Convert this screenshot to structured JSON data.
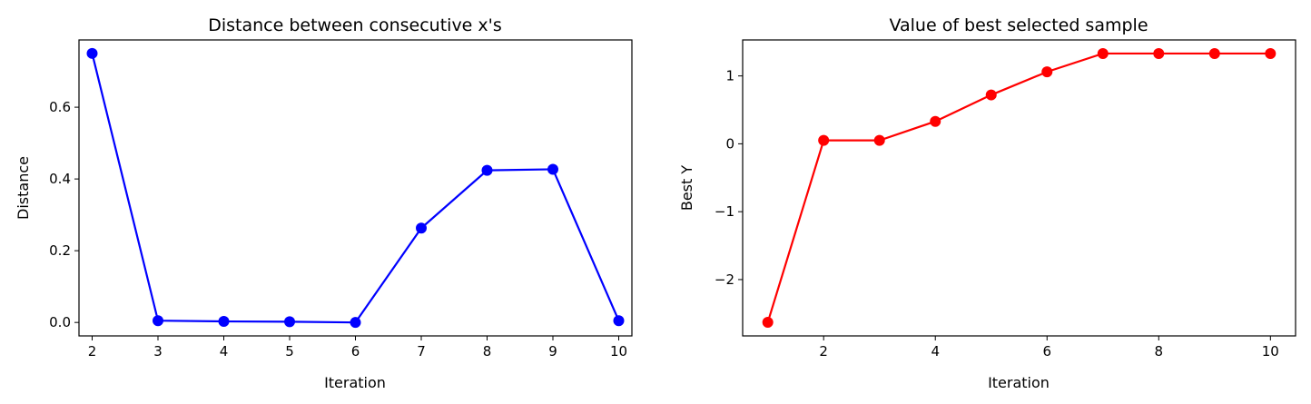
{
  "chart_data": [
    {
      "type": "line",
      "title": "Distance between consecutive x's",
      "xlabel": "Iteration",
      "ylabel": "Distance",
      "x": [
        2,
        3,
        4,
        5,
        6,
        7,
        8,
        9,
        10
      ],
      "series": [
        {
          "values": [
            0.75,
            0.005,
            0.003,
            0.002,
            0.0,
            0.263,
            0.424,
            0.427,
            0.005
          ],
          "color": "#0000ff",
          "marker": "circle"
        }
      ],
      "xlim": [
        1.8,
        10.2
      ],
      "ylim": [
        -0.0375,
        0.7875
      ],
      "xticks": [
        2,
        3,
        4,
        5,
        6,
        7,
        8,
        9,
        10
      ],
      "xticklabels": [
        "2",
        "3",
        "4",
        "5",
        "6",
        "7",
        "8",
        "9",
        "10"
      ],
      "yticks": [
        0.0,
        0.2,
        0.4,
        0.6
      ],
      "yticklabels": [
        "0.0",
        "0.2",
        "0.4",
        "0.6"
      ],
      "grid": false
    },
    {
      "type": "line",
      "title": "Value of best selected sample",
      "xlabel": "Iteration",
      "ylabel": "Best Y",
      "x": [
        1,
        2,
        3,
        4,
        5,
        6,
        7,
        8,
        9,
        10
      ],
      "series": [
        {
          "values": [
            -2.63,
            0.05,
            0.05,
            0.33,
            0.72,
            1.06,
            1.33,
            1.33,
            1.33,
            1.33
          ],
          "color": "#ff0000",
          "marker": "circle"
        }
      ],
      "xlim": [
        0.55,
        10.45
      ],
      "ylim": [
        -2.83,
        1.53
      ],
      "xticks": [
        2,
        4,
        6,
        8,
        10
      ],
      "xticklabels": [
        "2",
        "4",
        "6",
        "8",
        "10"
      ],
      "yticks": [
        -2,
        -1,
        0,
        1
      ],
      "yticklabels": [
        "−2",
        "−1",
        "0",
        "1"
      ],
      "grid": false
    }
  ]
}
